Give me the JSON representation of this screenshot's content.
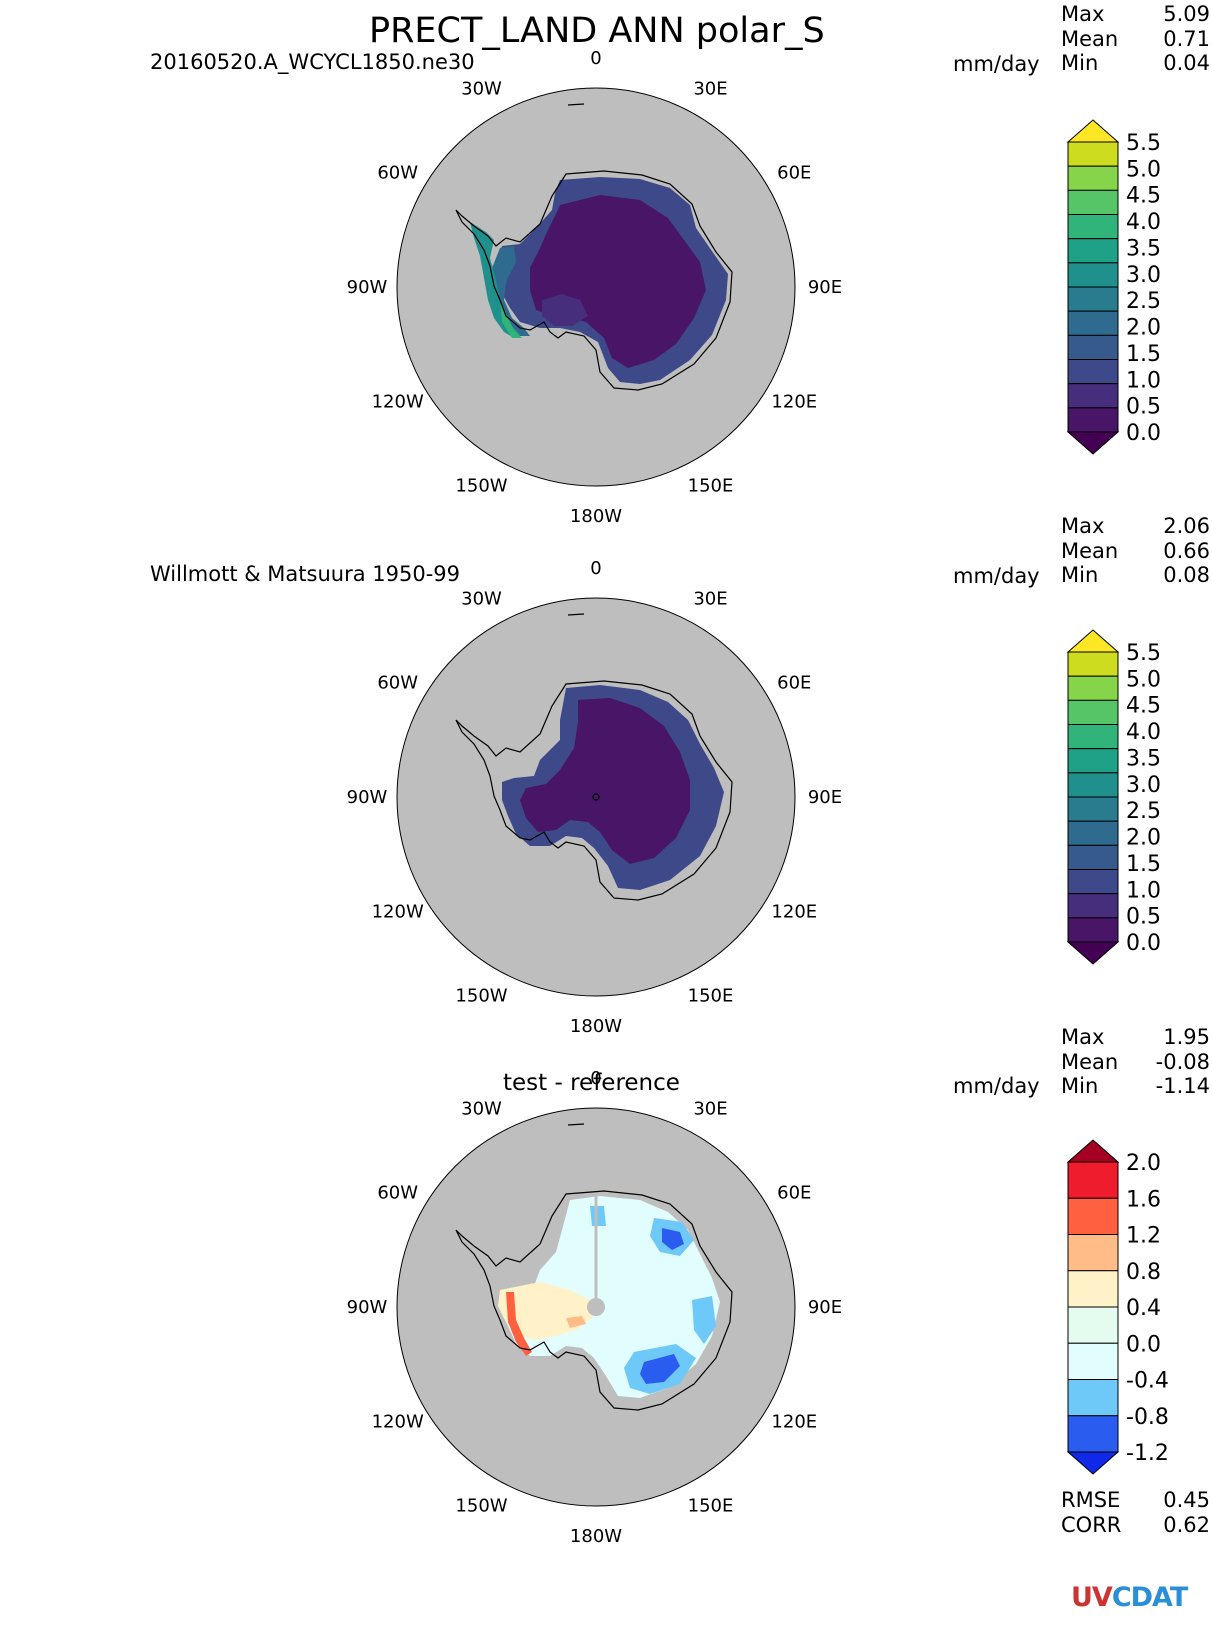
{
  "title": "PRECT_LAND ANN polar_S",
  "units": "mm/day",
  "stat_labels": {
    "max": "Max",
    "mean": "Mean",
    "min": "Min"
  },
  "longitude_labels": [
    "0",
    "30E",
    "60E",
    "90E",
    "120E",
    "150E",
    "180W",
    "150W",
    "120W",
    "90W",
    "60W",
    "30W"
  ],
  "panels": [
    {
      "name": "test",
      "label": "20160520.A_WCYCL1850.ne30",
      "stats": {
        "max": "5.09",
        "mean": "0.71",
        "min": "0.04"
      },
      "colorbar": {
        "levels": [
          "5.5",
          "5.0",
          "4.5",
          "4.0",
          "3.5",
          "3.0",
          "2.5",
          "2.0",
          "1.5",
          "1.0",
          "0.5",
          "0.0"
        ],
        "colors": [
          "#cddc1e",
          "#86d44a",
          "#55c567",
          "#30b47a",
          "#1fa188",
          "#20908c",
          "#287c8e",
          "#2f6b8e",
          "#365a8c",
          "#3e4989",
          "#472e7c",
          "#481567"
        ],
        "over_color": "#fde725",
        "under_color": "#440154"
      }
    },
    {
      "name": "reference",
      "label": "Willmott & Matsuura 1950-99",
      "stats": {
        "max": "2.06",
        "mean": "0.66",
        "min": "0.08"
      },
      "colorbar": {
        "levels": [
          "5.5",
          "5.0",
          "4.5",
          "4.0",
          "3.5",
          "3.0",
          "2.5",
          "2.0",
          "1.5",
          "1.0",
          "0.5",
          "0.0"
        ],
        "colors": [
          "#cddc1e",
          "#86d44a",
          "#55c567",
          "#30b47a",
          "#1fa188",
          "#20908c",
          "#287c8e",
          "#2f6b8e",
          "#365a8c",
          "#3e4989",
          "#472e7c",
          "#481567"
        ],
        "over_color": "#fde725",
        "under_color": "#440154"
      }
    },
    {
      "name": "difference",
      "label": "test - reference",
      "stats": {
        "max": "1.95",
        "mean": "-0.08",
        "min": "-1.14"
      },
      "colorbar": {
        "levels": [
          "2.0",
          "1.6",
          "1.2",
          "0.8",
          "0.4",
          "0.0",
          "-0.4",
          "-0.8",
          "-1.2"
        ],
        "colors": [
          "#ee1c2c",
          "#ff6040",
          "#ffbb88",
          "#fff2c8",
          "#e4fbef",
          "#e2fdfd",
          "#6ec9f9",
          "#2b5cf0"
        ],
        "over_color": "#a50021",
        "under_color": "#1028e8"
      }
    }
  ],
  "metrics": {
    "rmse_label": "RMSE",
    "rmse": "0.45",
    "corr_label": "CORR",
    "corr": "0.62"
  },
  "logo": {
    "left": "UV",
    "right": "CDAT"
  },
  "colors": {
    "ocean": "#bebebe",
    "outline": "#000000"
  }
}
